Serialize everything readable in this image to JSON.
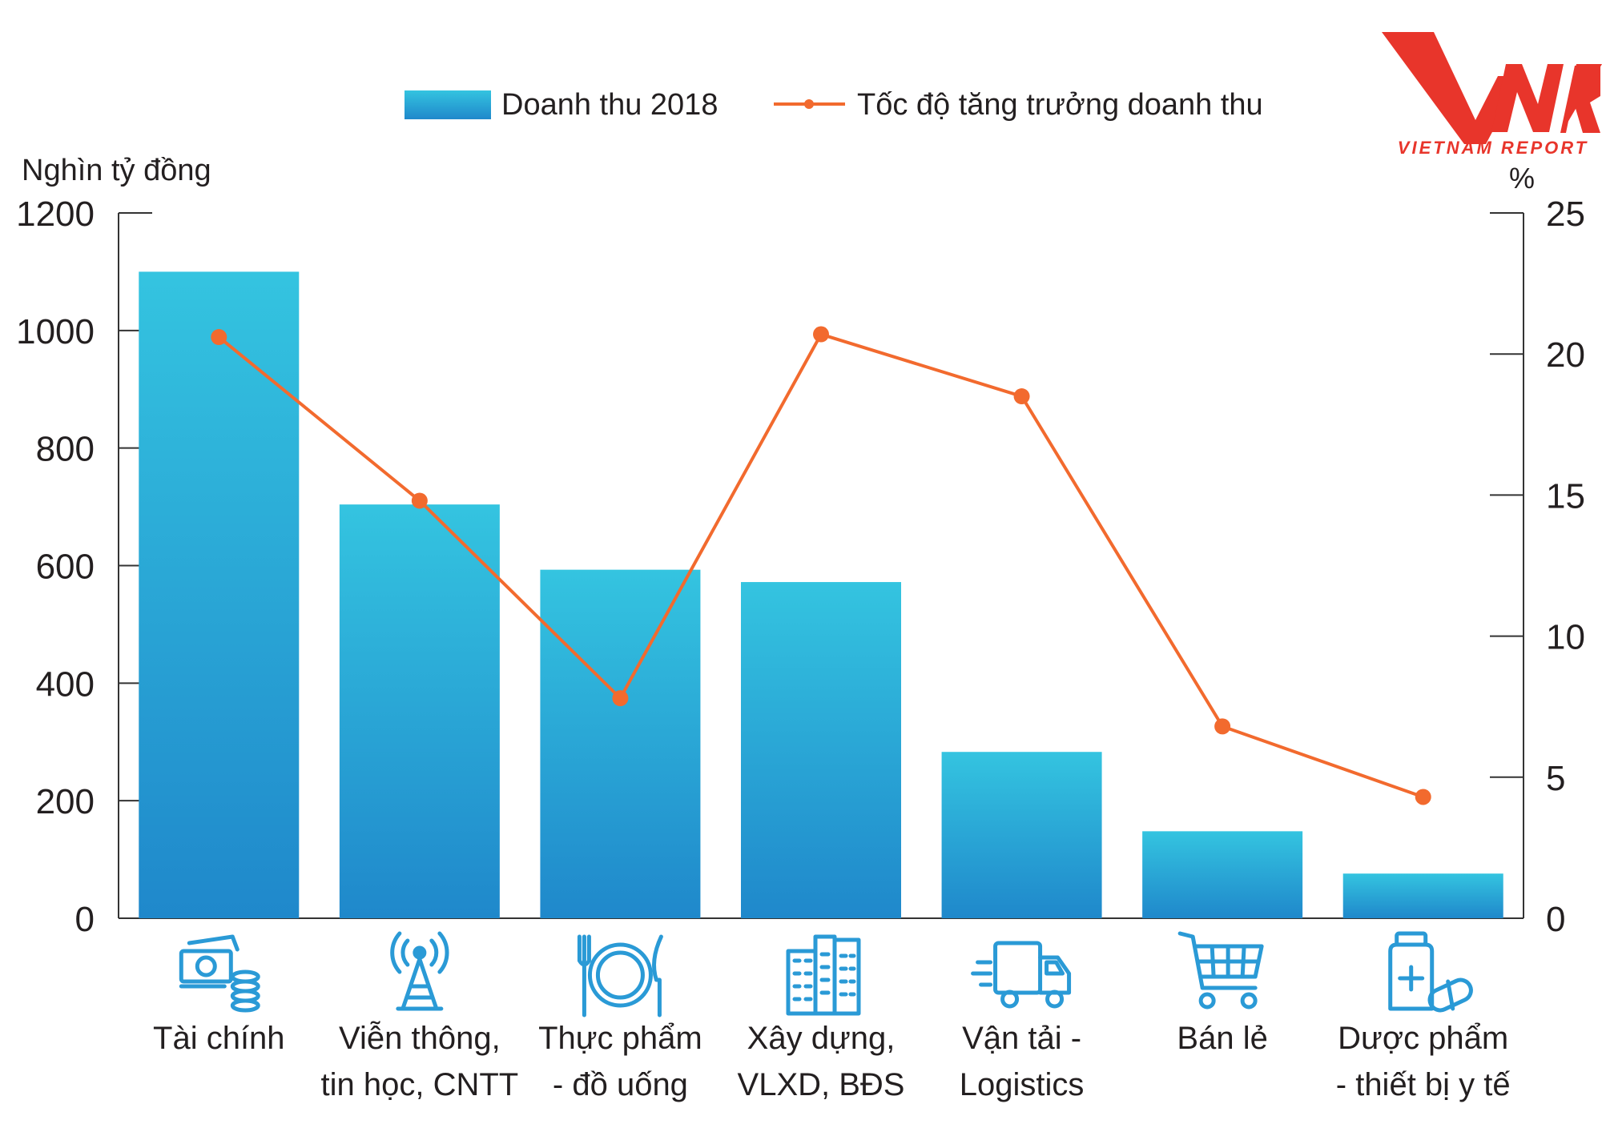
{
  "brand": {
    "logo_text": "VNR",
    "name": "VIETNAM REPORT"
  },
  "chart_data": {
    "type": "bar",
    "categories": [
      "Tài chính",
      "Viễn thông, tin học, CNTT",
      "Thực phẩm - đồ uống",
      "Xây dựng, VLXD, BĐS",
      "Vận tải - Logistics",
      "Bán lẻ",
      "Dược phẩm - thiết bị y tế"
    ],
    "category_lines": [
      [
        "Tài chính"
      ],
      [
        "Viễn thông,",
        "tin học, CNTT"
      ],
      [
        "Thực phẩm",
        "- đồ uống"
      ],
      [
        "Xây dựng,",
        "VLXD, BĐS"
      ],
      [
        "Vận tải -",
        "Logistics"
      ],
      [
        "Bán lẻ"
      ],
      [
        "Dược phẩm",
        "- thiết bị y tế"
      ]
    ],
    "category_icons": [
      "money-icon",
      "telecom-tower-icon",
      "plate-cutlery-icon",
      "buildings-icon",
      "truck-icon",
      "shopping-cart-icon",
      "medicine-icon"
    ],
    "series": [
      {
        "name": "Doanh thu 2018",
        "type": "bar",
        "axis": "left",
        "color": "#2a95d3",
        "values": [
          1100,
          704,
          593,
          572,
          283,
          148,
          76
        ]
      },
      {
        "name": "Tốc độ tăng trưởng doanh thu",
        "type": "line",
        "axis": "right",
        "color": "#f26a2e",
        "values": [
          20.6,
          14.8,
          7.8,
          20.7,
          18.5,
          6.8,
          4.3
        ]
      }
    ],
    "y_left": {
      "label": "Nghìn tỷ đồng",
      "lim": [
        0,
        1200
      ],
      "ticks": [
        0,
        200,
        400,
        600,
        800,
        1000,
        1200
      ]
    },
    "y_right": {
      "label": "%",
      "lim": [
        0,
        25
      ],
      "ticks": [
        0,
        5,
        10,
        15,
        20,
        25
      ]
    },
    "legend": "top-center",
    "grid": false
  }
}
